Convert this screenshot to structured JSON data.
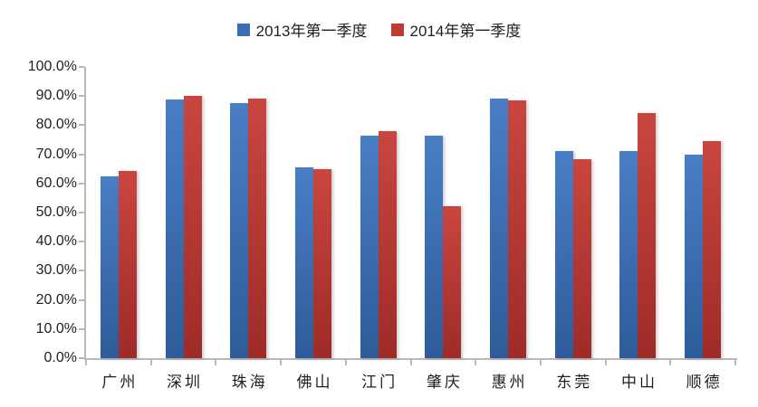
{
  "chart_data": {
    "type": "bar",
    "title": "",
    "categories": [
      "广州",
      "深圳",
      "珠海",
      "佛山",
      "江门",
      "肇庆",
      "惠州",
      "东莞",
      "中山",
      "顺德"
    ],
    "series": [
      {
        "name": "2013年第一季度",
        "legend_color": "#3a6db5",
        "gradient_top": "#4a7ec5",
        "gradient_bottom": "#2e5c9a",
        "values": [
          62.4,
          88.7,
          87.7,
          65.5,
          76.4,
          76.5,
          89.0,
          71.0,
          71.2,
          70.0
        ]
      },
      {
        "name": "2014年第一季度",
        "legend_color": "#be3b36",
        "gradient_top": "#c9463f",
        "gradient_bottom": "#9e2b28",
        "values": [
          64.3,
          90.0,
          89.0,
          64.8,
          78.1,
          52.1,
          88.6,
          68.2,
          84.2,
          74.6
        ]
      }
    ],
    "xlabel": "",
    "ylabel": "",
    "ylim": [
      0,
      100
    ],
    "ytick_step": 10,
    "ytick_labels": [
      "0.0%",
      "10.0%",
      "20.0%",
      "30.0%",
      "40.0%",
      "50.0%",
      "60.0%",
      "70.0%",
      "80.0%",
      "90.0%",
      "100.0%"
    ],
    "grid": false,
    "legend_position": "top-center",
    "axis_color": "#b9b9b9",
    "text_color": "#1f1f1f",
    "background_color": "#ffffff"
  },
  "legend": {
    "items": [
      {
        "label": "2013年第一季度",
        "color": "#3a6db5"
      },
      {
        "label": "2014年第一季度",
        "color": "#be3b36"
      }
    ]
  }
}
